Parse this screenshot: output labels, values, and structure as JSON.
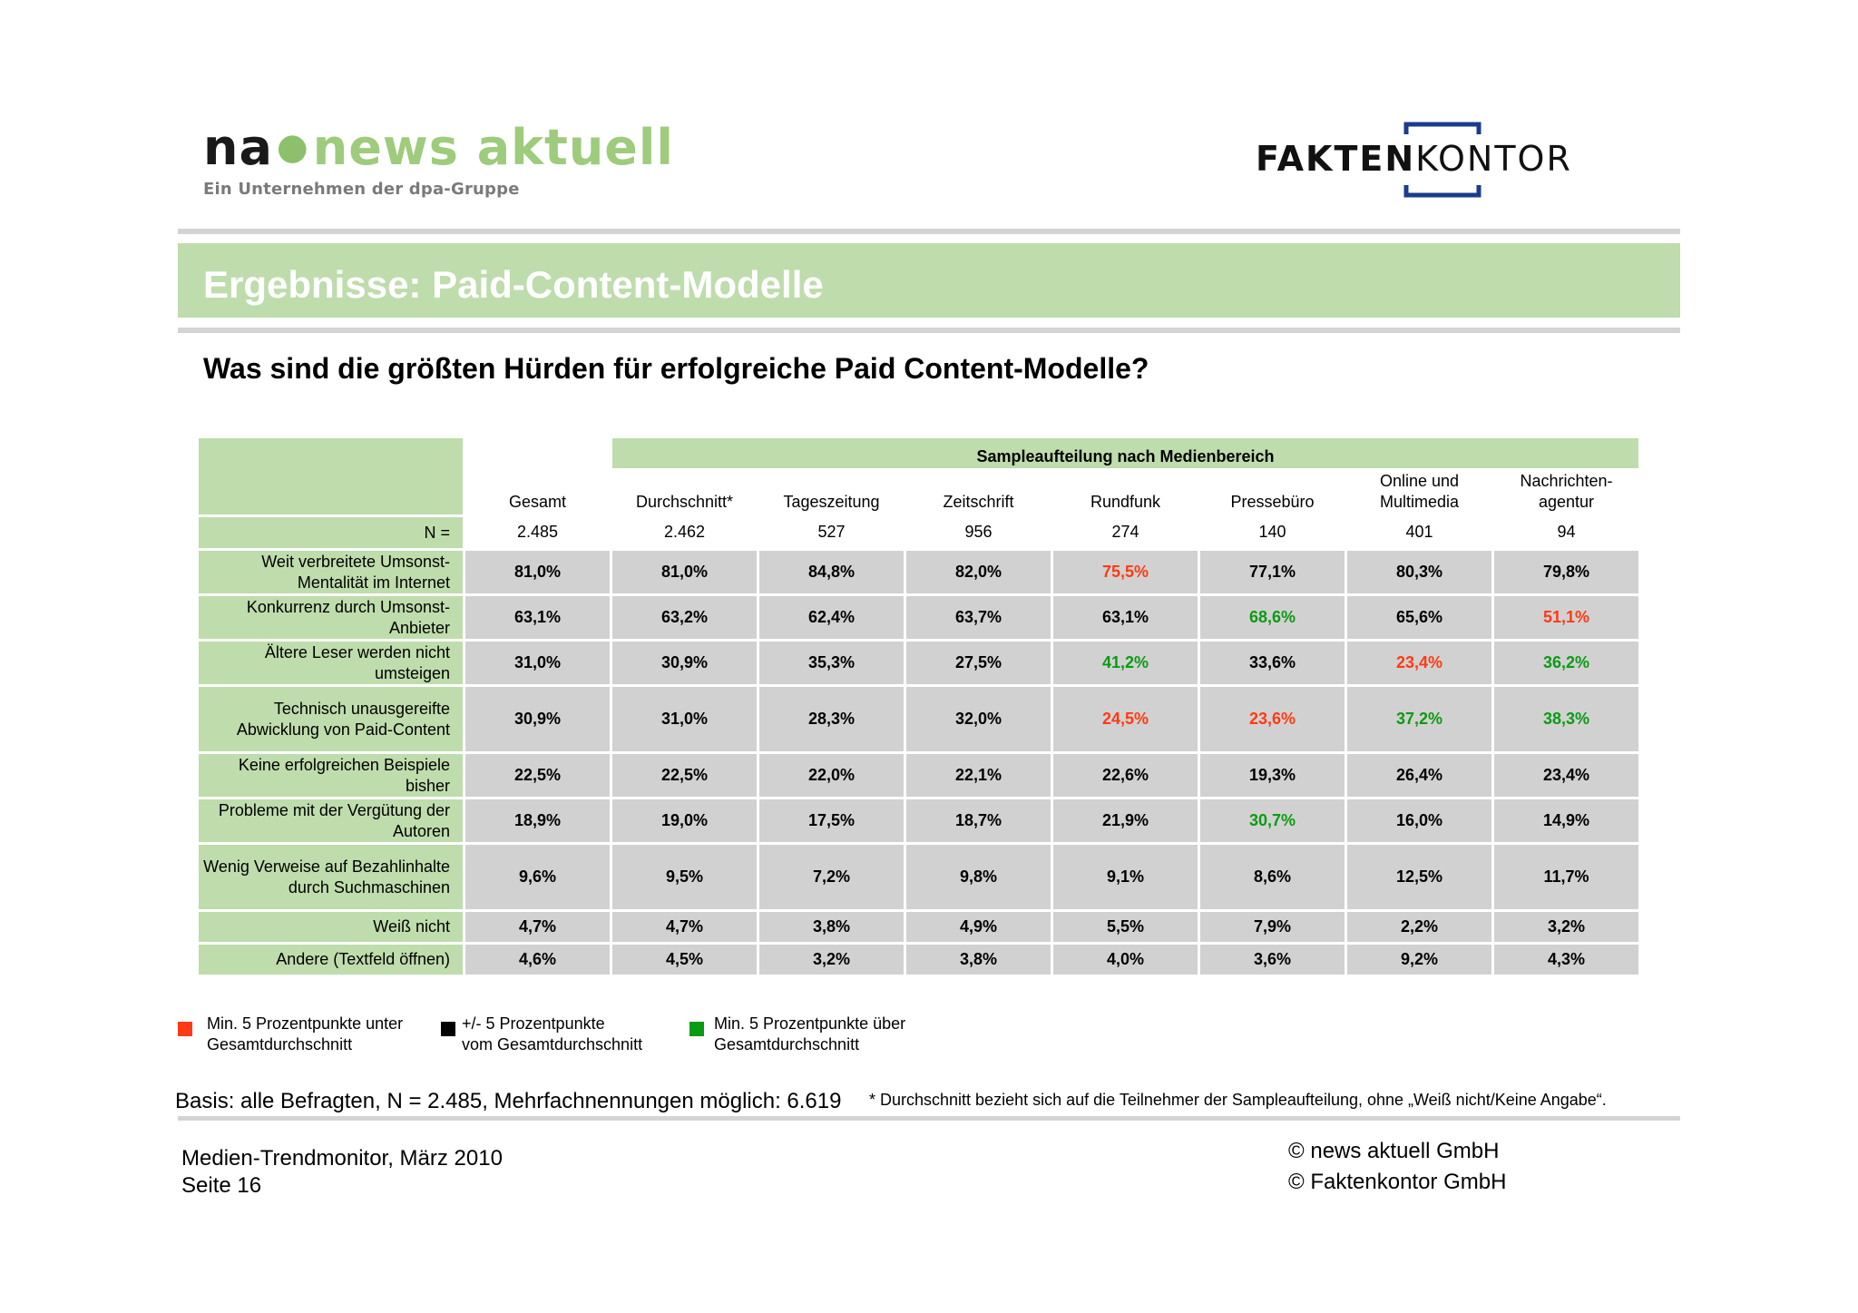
{
  "logos": {
    "news_aktuell": {
      "prefix": "na",
      "name": "news aktuell",
      "tagline": "Ein Unternehmen der dpa-Gruppe"
    },
    "faktenkontor": {
      "part1": "FAKTEN",
      "part2": "KONTOR"
    }
  },
  "title": "Ergebnisse: Paid-Content-Modelle",
  "question": "Was sind die größten Hürden für erfolgreiche Paid Content-Modelle?",
  "table": {
    "group_header": "Sampleaufteilung nach Medienbereich",
    "columns": [
      "Gesamt",
      "Durchschnitt*",
      "Tageszeitung",
      "Zeitschrift",
      "Rundfunk",
      "Pressebüro",
      "Online und Multimedia",
      "Nachrichten-agentur"
    ],
    "n_label": "N =",
    "n_values": [
      "2.485",
      "2.462",
      "527",
      "956",
      "274",
      "140",
      "401",
      "94"
    ],
    "rows": [
      {
        "label": "Weit verbreitete Umsonst-Mentalität im Internet",
        "values": [
          "81,0%",
          "81,0%",
          "84,8%",
          "82,0%",
          "75,5%",
          "77,1%",
          "80,3%",
          "79,8%"
        ],
        "status": [
          "",
          "",
          "",
          "",
          "red",
          "",
          "",
          ""
        ]
      },
      {
        "label": "Konkurrenz durch Umsonst-Anbieter",
        "values": [
          "63,1%",
          "63,2%",
          "62,4%",
          "63,7%",
          "63,1%",
          "68,6%",
          "65,6%",
          "51,1%"
        ],
        "status": [
          "",
          "",
          "",
          "",
          "",
          "green",
          "",
          "red"
        ]
      },
      {
        "label": "Ältere Leser werden nicht umsteigen",
        "values": [
          "31,0%",
          "30,9%",
          "35,3%",
          "27,5%",
          "41,2%",
          "33,6%",
          "23,4%",
          "36,2%"
        ],
        "status": [
          "",
          "",
          "",
          "",
          "green",
          "",
          "red",
          "green"
        ]
      },
      {
        "label": "Technisch unausgereifte Abwicklung von Paid-Content",
        "values": [
          "30,9%",
          "31,0%",
          "28,3%",
          "32,0%",
          "24,5%",
          "23,6%",
          "37,2%",
          "38,3%"
        ],
        "status": [
          "",
          "",
          "",
          "",
          "red",
          "red",
          "green",
          "green"
        ]
      },
      {
        "label": "Keine erfolgreichen Beispiele bisher",
        "values": [
          "22,5%",
          "22,5%",
          "22,0%",
          "22,1%",
          "22,6%",
          "19,3%",
          "26,4%",
          "23,4%"
        ],
        "status": [
          "",
          "",
          "",
          "",
          "",
          "",
          "",
          ""
        ]
      },
      {
        "label": "Probleme mit der Vergütung der Autoren",
        "values": [
          "18,9%",
          "19,0%",
          "17,5%",
          "18,7%",
          "21,9%",
          "30,7%",
          "16,0%",
          "14,9%"
        ],
        "status": [
          "",
          "",
          "",
          "",
          "",
          "green",
          "",
          ""
        ]
      },
      {
        "label": "Wenig Verweise auf Bezahlinhalte durch Suchmaschinen",
        "values": [
          "9,6%",
          "9,5%",
          "7,2%",
          "9,8%",
          "9,1%",
          "8,6%",
          "12,5%",
          "11,7%"
        ],
        "status": [
          "",
          "",
          "",
          "",
          "",
          "",
          "",
          ""
        ]
      },
      {
        "label": "Weiß nicht",
        "values": [
          "4,7%",
          "4,7%",
          "3,8%",
          "4,9%",
          "5,5%",
          "7,9%",
          "2,2%",
          "3,2%"
        ],
        "status": [
          "",
          "",
          "",
          "",
          "",
          "",
          "",
          ""
        ]
      },
      {
        "label": "Andere (Textfeld öffnen)",
        "values": [
          "4,6%",
          "4,5%",
          "3,2%",
          "3,8%",
          "4,0%",
          "3,6%",
          "9,2%",
          "4,3%"
        ],
        "status": [
          "",
          "",
          "",
          "",
          "",
          "",
          "",
          ""
        ]
      }
    ]
  },
  "legend": [
    {
      "color": "#ff3a14",
      "line1": "Min. 5 Prozentpunkte unter",
      "line2": "Gesamtdurchschnitt"
    },
    {
      "color": "#000000",
      "line1": "+/- 5 Prozentpunkte",
      "line2": "vom Gesamtdurchschnitt"
    },
    {
      "color": "#0a9b14",
      "line1": "Min. 5 Prozentpunkte über",
      "line2": "Gesamtdurchschnitt"
    }
  ],
  "basis": "Basis: alle Befragten, N = 2.485, Mehrfachnennungen möglich: 6.619",
  "footnote": "* Durchschnitt bezieht sich auf die Teilnehmer der Sampleaufteilung, ohne „Weiß nicht/Keine Angabe“.",
  "footer": {
    "study": "Medien-Trendmonitor, März 2010",
    "page": "Seite 16",
    "copyright1": "© news aktuell GmbH",
    "copyright2": "© Faktenkontor GmbH"
  },
  "colors": {
    "accent_green": "#bfdcac",
    "cell_grey": "#d2d1d1",
    "below": "#ff3a14",
    "above": "#0a9b14"
  }
}
